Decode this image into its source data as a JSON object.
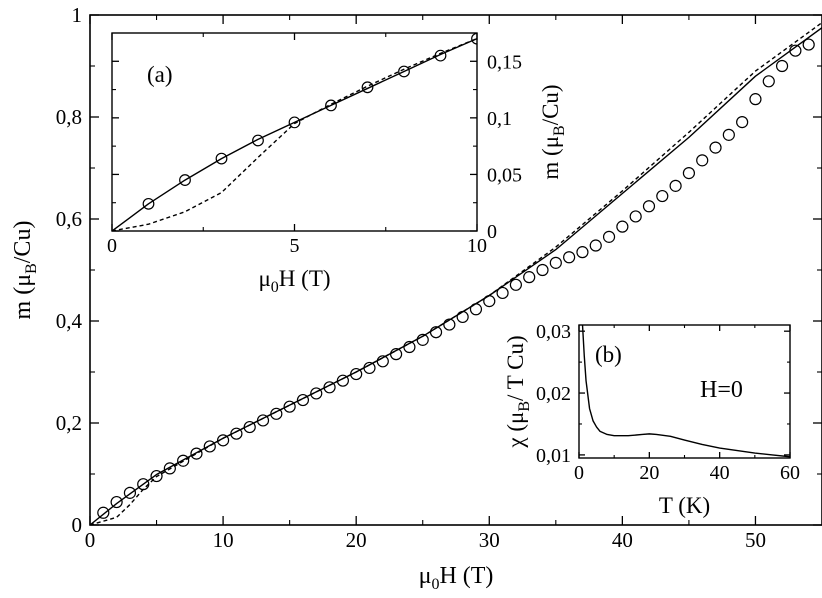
{
  "chart_data": [
    {
      "panel": "main",
      "type": "scatter",
      "title": "",
      "xlabel": {
        "base": "μ",
        "sub": "0",
        "rest": "H (T)"
      },
      "ylabel": {
        "base": "m (μ",
        "sub": "B",
        "rest": "/Cu)"
      },
      "xlim": [
        0,
        55
      ],
      "ylim": [
        0,
        1
      ],
      "xticks": [
        0,
        10,
        20,
        30,
        40,
        50
      ],
      "xtick_labels": [
        "0",
        "10",
        "20",
        "30",
        "40",
        "50"
      ],
      "yticks": [
        0,
        0.2,
        0.4,
        0.6,
        0.8,
        1
      ],
      "ytick_labels": [
        "0",
        "0,2",
        "0,4",
        "0,6",
        "0,8",
        "1"
      ],
      "grid": false,
      "series": [
        {
          "style": "open-circles",
          "x": [
            1,
            2,
            3,
            4,
            5,
            6,
            7,
            8,
            9,
            10,
            11,
            12,
            13,
            14,
            15,
            16,
            17,
            18,
            19,
            20,
            21,
            22,
            23,
            24,
            25,
            26,
            27,
            28,
            29,
            30,
            31,
            32,
            33,
            34,
            35,
            36,
            37,
            38,
            39,
            40,
            41,
            42,
            43,
            44,
            45,
            46,
            47,
            48,
            49,
            50,
            51,
            52,
            53,
            54
          ],
          "y": [
            0.024,
            0.045,
            0.063,
            0.08,
            0.096,
            0.111,
            0.126,
            0.14,
            0.154,
            0.166,
            0.179,
            0.192,
            0.205,
            0.218,
            0.232,
            0.245,
            0.258,
            0.27,
            0.283,
            0.296,
            0.308,
            0.321,
            0.335,
            0.349,
            0.363,
            0.378,
            0.393,
            0.408,
            0.423,
            0.439,
            0.455,
            0.471,
            0.486,
            0.5,
            0.514,
            0.525,
            0.535,
            0.548,
            0.565,
            0.585,
            0.605,
            0.625,
            0.645,
            0.665,
            0.69,
            0.715,
            0.74,
            0.765,
            0.79,
            0.835,
            0.87,
            0.9,
            0.93,
            0.942
          ]
        },
        {
          "style": "solid-line",
          "x": [
            0,
            2,
            5,
            10,
            15,
            20,
            25,
            30,
            35,
            40,
            45,
            50,
            55
          ],
          "y": [
            0,
            0.042,
            0.099,
            0.17,
            0.235,
            0.3,
            0.37,
            0.45,
            0.54,
            0.65,
            0.76,
            0.88,
            0.975
          ]
        },
        {
          "style": "dashed-line",
          "x": [
            0,
            2,
            3,
            4,
            5,
            10,
            15,
            20,
            25,
            30,
            35,
            40,
            45,
            50,
            55
          ],
          "y": [
            0,
            0.015,
            0.04,
            0.07,
            0.095,
            0.17,
            0.235,
            0.3,
            0.37,
            0.45,
            0.545,
            0.655,
            0.77,
            0.89,
            0.985
          ]
        }
      ]
    },
    {
      "panel": "inset-a",
      "type": "scatter",
      "label": "(a)",
      "title": "",
      "xlabel": {
        "base": "μ",
        "sub": "0",
        "rest": "H (T)"
      },
      "ylabel": {
        "base": "m (μ",
        "sub": "B",
        "rest": "/Cu)"
      },
      "ylabel_side": "right",
      "xlim": [
        0,
        10
      ],
      "ylim": [
        0,
        0.175
      ],
      "xticks": [
        0,
        5,
        10
      ],
      "xtick_labels": [
        "0",
        "5",
        "10"
      ],
      "yticks": [
        0,
        0.05,
        0.1,
        0.15
      ],
      "ytick_labels": [
        "0",
        "0,05",
        "0,1",
        "0,15"
      ],
      "grid": false,
      "series": [
        {
          "style": "open-circles",
          "x": [
            1,
            2,
            3,
            4,
            5,
            6,
            7,
            8,
            9,
            10
          ],
          "y": [
            0.024,
            0.045,
            0.064,
            0.08,
            0.096,
            0.111,
            0.127,
            0.141,
            0.155,
            0.17
          ]
        },
        {
          "style": "solid-line",
          "x": [
            0,
            1,
            2,
            3,
            4,
            5,
            6,
            7,
            8,
            9,
            10
          ],
          "y": [
            0,
            0.024,
            0.045,
            0.064,
            0.081,
            0.096,
            0.111,
            0.126,
            0.141,
            0.156,
            0.17
          ]
        },
        {
          "style": "dashed-line",
          "x": [
            0,
            1,
            2,
            3,
            4,
            5,
            6,
            7,
            8,
            9,
            10
          ],
          "y": [
            0,
            0.006,
            0.017,
            0.034,
            0.065,
            0.095,
            0.112,
            0.128,
            0.143,
            0.157,
            0.17
          ]
        }
      ]
    },
    {
      "panel": "inset-b",
      "type": "line",
      "label": "(b)",
      "note": "H=0",
      "title": "",
      "xlabel": {
        "base": "T (K)",
        "sub": "",
        "rest": ""
      },
      "ylabel": {
        "base": "χ (μ",
        "sub": "B",
        "rest": "/ T Cu)"
      },
      "xlim": [
        0,
        60
      ],
      "ylim": [
        0.0095,
        0.031
      ],
      "xticks": [
        0,
        20,
        40,
        60
      ],
      "xtick_labels": [
        "0",
        "20",
        "40",
        "60"
      ],
      "yticks": [
        0.01,
        0.02,
        0.03
      ],
      "ytick_labels": [
        "0,01",
        "0,02",
        "0,03"
      ],
      "grid": false,
      "series": [
        {
          "style": "solid-line",
          "x": [
            1,
            1.5,
            2,
            3,
            4,
            5,
            6,
            8,
            10,
            14,
            18,
            20,
            22,
            26,
            30,
            35,
            40,
            45,
            50,
            55,
            60
          ],
          "y": [
            0.031,
            0.026,
            0.022,
            0.0175,
            0.0155,
            0.0145,
            0.0138,
            0.0133,
            0.0131,
            0.0131,
            0.0133,
            0.0134,
            0.0133,
            0.013,
            0.0124,
            0.0117,
            0.0111,
            0.0107,
            0.0103,
            0.01,
            0.0097
          ]
        }
      ]
    }
  ]
}
